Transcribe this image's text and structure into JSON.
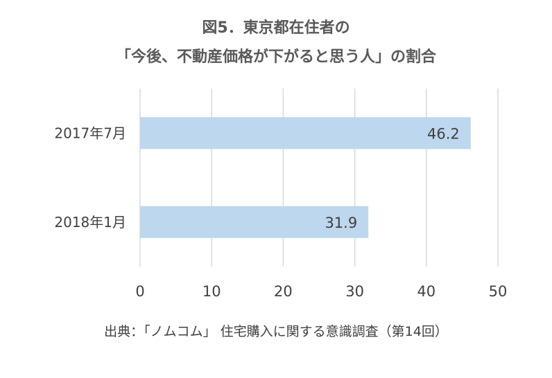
{
  "chart_data": {
    "type": "bar",
    "orientation": "horizontal",
    "title_lines": [
      "図5．東京都在住者の",
      "「今後、不動産価格が下がると思う人」の割合"
    ],
    "categories": [
      "2017年7月",
      "2018年1月"
    ],
    "values": [
      46.2,
      31.9
    ],
    "data_labels": [
      "46.2",
      "31.9"
    ],
    "xlim": [
      0,
      50
    ],
    "x_ticks": [
      "0",
      "10",
      "20",
      "30",
      "40",
      "50"
    ],
    "grid": "vertical",
    "bar_color": "#bdd7ee",
    "grid_color": "#d9d9d9"
  },
  "source": "出典：「ノムコム」 住宅購入に関する意識調査（第14回）"
}
